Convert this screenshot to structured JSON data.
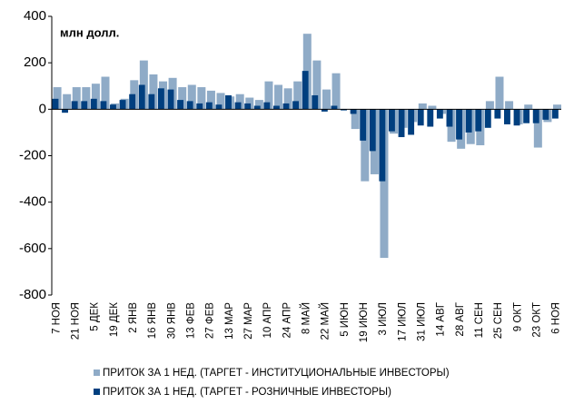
{
  "chart_data": {
    "type": "bar",
    "annotation": "млн долл.",
    "categories": [
      "7 НОЯ",
      null,
      "21 НОЯ",
      null,
      "5 ДЕК",
      null,
      "19 ДЕК",
      null,
      "2 ЯНВ",
      null,
      "16 ЯНВ",
      null,
      "30 ЯНВ",
      null,
      "13 ФЕВ",
      null,
      "27 ФЕВ",
      null,
      "13 МАР",
      null,
      "27 МАР",
      null,
      "10 АПР",
      null,
      "24 АПР",
      null,
      "8 МАЙ",
      null,
      "22 МАЙ",
      null,
      "5 ИЮН",
      null,
      "19 ИЮН",
      null,
      "3 ИЮЛ",
      null,
      "17 ИЮЛ",
      null,
      "31 ИЮЛ",
      null,
      "14 АВГ",
      null,
      "28 АВГ",
      null,
      "11 СЕН",
      null,
      "25 СЕН",
      null,
      "9 ОКТ",
      null,
      "23 ОКТ",
      null,
      "6 НОЯ"
    ],
    "series": [
      {
        "name": "ПРИТОК ЗА 1 НЕД. (ТАРГЕТ - ИНСТИТУЦИОНАЛЬНЫЕ  ИНВЕСТОРЫ)",
        "color": "#8fabc7",
        "values": [
          95,
          65,
          95,
          95,
          110,
          140,
          25,
          45,
          125,
          210,
          150,
          120,
          135,
          95,
          105,
          95,
          80,
          70,
          55,
          65,
          50,
          40,
          120,
          105,
          90,
          120,
          325,
          210,
          85,
          155,
          0,
          -85,
          -310,
          -280,
          -640,
          -105,
          -80,
          -55,
          25,
          15,
          -20,
          -140,
          -170,
          -150,
          -155,
          35,
          140,
          35,
          -65,
          20,
          -165,
          -55,
          20
        ]
      },
      {
        "name": "ПРИТОК ЗА 1 НЕД. (ТАРГЕТ - РОЗНИЧНЫЕ ИНВЕСТОРЫ)",
        "color": "#003f7f",
        "values": [
          45,
          -15,
          35,
          35,
          45,
          35,
          20,
          40,
          65,
          105,
          65,
          90,
          85,
          40,
          35,
          25,
          30,
          20,
          60,
          30,
          25,
          15,
          30,
          15,
          25,
          35,
          165,
          60,
          -10,
          15,
          -5,
          -20,
          -135,
          -180,
          -310,
          -95,
          -120,
          -110,
          -70,
          -75,
          -40,
          -75,
          -130,
          -100,
          -95,
          -80,
          -40,
          -65,
          -70,
          -60,
          -60,
          -45,
          -40
        ]
      }
    ],
    "ylim": [
      -800,
      400
    ],
    "yticks": [
      -800,
      -600,
      -400,
      -200,
      0,
      200,
      400
    ]
  }
}
